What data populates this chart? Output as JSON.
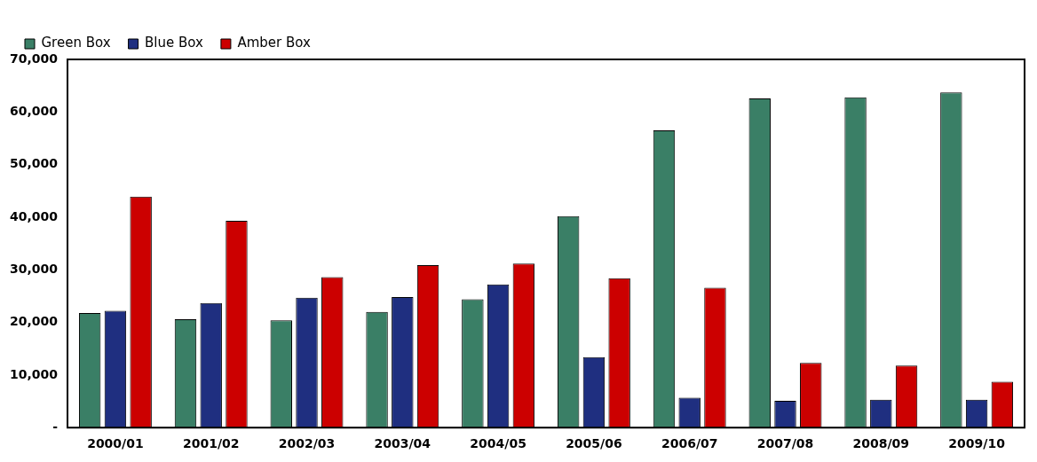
{
  "chart_data": {
    "type": "bar",
    "categories": [
      "2000/01",
      "2001/02",
      "2002/03",
      "2003/04",
      "2004/05",
      "2005/06",
      "2006/07",
      "2007/08",
      "2008/09",
      "2009/10"
    ],
    "series": [
      {
        "name": "Green Box",
        "color": "#3a7f66",
        "values": [
          21800,
          20600,
          20400,
          22000,
          24400,
          40200,
          56500,
          62600,
          62800,
          63700
        ]
      },
      {
        "name": "Blue Box",
        "color": "#1f2f80",
        "values": [
          22200,
          23700,
          24700,
          24800,
          27200,
          13400,
          5700,
          5100,
          5300,
          5300
        ]
      },
      {
        "name": "Amber Box",
        "color": "#cc0000",
        "values": [
          43900,
          39300,
          28600,
          30900,
          31200,
          28400,
          26600,
          12300,
          11800,
          8700
        ]
      }
    ],
    "ylim": [
      0,
      70000
    ],
    "yticks": [
      {
        "value": 0,
        "label": "-"
      },
      {
        "value": 10000,
        "label": "10,000"
      },
      {
        "value": 20000,
        "label": "20,000"
      },
      {
        "value": 30000,
        "label": "30,000"
      },
      {
        "value": 40000,
        "label": "40,000"
      },
      {
        "value": 50000,
        "label": "50,000"
      },
      {
        "value": 60000,
        "label": "60,000"
      },
      {
        "value": 70000,
        "label": "70,000"
      }
    ],
    "grid": false,
    "legend": "top left"
  }
}
